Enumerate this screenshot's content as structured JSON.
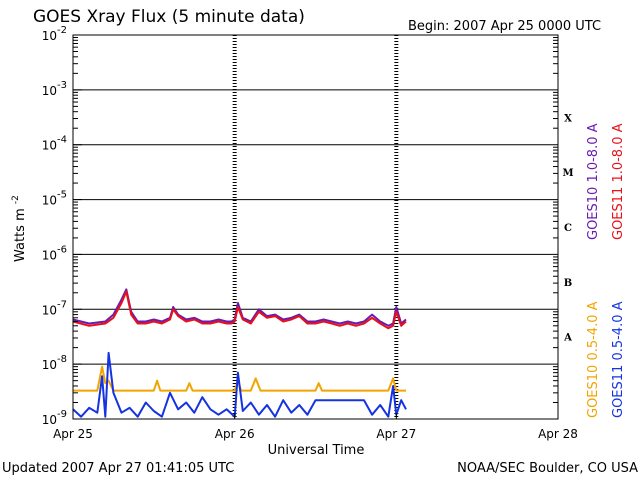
{
  "chart_data": {
    "type": "line",
    "title": "GOES Xray Flux (5 minute data)",
    "begin_label": "Begin:  2007 Apr 25 0000 UTC",
    "ylabel_main": "Watts m",
    "ylabel_sup": "-2",
    "xlabel": "Universal Time",
    "footer_left": "Updated 2007 Apr 27 01:41:05 UTC",
    "footer_right": "NOAA/SEC Boulder, CO USA",
    "y_scale": "log",
    "ylim": [
      1e-09,
      0.01
    ],
    "y_ticks": [
      {
        "value": 0.01,
        "base": "10",
        "exp": "-2"
      },
      {
        "value": 0.001,
        "base": "10",
        "exp": "-3"
      },
      {
        "value": 0.0001,
        "base": "10",
        "exp": "-4"
      },
      {
        "value": 1e-05,
        "base": "10",
        "exp": "-5"
      },
      {
        "value": 1e-06,
        "base": "10",
        "exp": "-6"
      },
      {
        "value": 1e-07,
        "base": "10",
        "exp": "-7"
      },
      {
        "value": 1e-08,
        "base": "10",
        "exp": "-8"
      },
      {
        "value": 1e-09,
        "base": "10",
        "exp": "-9"
      }
    ],
    "x_unit": "days since 2007 Apr 25 0000 UTC",
    "xlim": [
      0,
      3
    ],
    "x_ticks": [
      {
        "value": 0,
        "label": "Apr 25"
      },
      {
        "value": 1,
        "label": "Apr 26"
      },
      {
        "value": 2,
        "label": "Apr 27"
      },
      {
        "value": 3,
        "label": "Apr 28"
      }
    ],
    "flare_classes": [
      {
        "label": "X",
        "bottom": 0.0001
      },
      {
        "label": "M",
        "bottom": 1e-05
      },
      {
        "label": "C",
        "bottom": 1e-06
      },
      {
        "label": "B",
        "bottom": 1e-07
      },
      {
        "label": "A",
        "bottom": 1e-08
      }
    ],
    "grid_horizontal": true,
    "legend_placement": "right (vertical)",
    "series": [
      {
        "name": "GOES10 1.0-8.0 A",
        "color": "#6a1bb0",
        "x": [
          0,
          0.1,
          0.2,
          0.25,
          0.3,
          0.33,
          0.36,
          0.4,
          0.45,
          0.5,
          0.55,
          0.6,
          0.62,
          0.65,
          0.7,
          0.75,
          0.8,
          0.85,
          0.9,
          0.95,
          0.98,
          1.0,
          1.02,
          1.05,
          1.1,
          1.15,
          1.2,
          1.25,
          1.3,
          1.35,
          1.4,
          1.45,
          1.5,
          1.55,
          1.6,
          1.65,
          1.7,
          1.75,
          1.8,
          1.85,
          1.9,
          1.95,
          1.98,
          2.0,
          2.03,
          2.06
        ],
        "values": [
          6.5e-08,
          5.5e-08,
          6e-08,
          8e-08,
          1.5e-07,
          2.3e-07,
          9e-08,
          6e-08,
          6e-08,
          6.5e-08,
          6e-08,
          7e-08,
          1.1e-07,
          8e-08,
          6.5e-08,
          7e-08,
          6e-08,
          6e-08,
          6.5e-08,
          6e-08,
          6e-08,
          6.5e-08,
          1.3e-07,
          7e-08,
          6e-08,
          1e-07,
          7.5e-08,
          8e-08,
          6.5e-08,
          7e-08,
          8e-08,
          6e-08,
          6e-08,
          6.5e-08,
          6e-08,
          5.5e-08,
          6e-08,
          5.5e-08,
          6e-08,
          8e-08,
          6e-08,
          5e-08,
          5.5e-08,
          1.1e-07,
          5.5e-08,
          6.5e-08
        ]
      },
      {
        "name": "GOES11 1.0-8.0 A",
        "color": "#e8101a",
        "x": [
          0,
          0.1,
          0.2,
          0.25,
          0.3,
          0.33,
          0.36,
          0.4,
          0.45,
          0.5,
          0.55,
          0.6,
          0.62,
          0.65,
          0.7,
          0.75,
          0.8,
          0.85,
          0.9,
          0.95,
          0.98,
          1.0,
          1.02,
          1.05,
          1.1,
          1.15,
          1.2,
          1.25,
          1.3,
          1.35,
          1.4,
          1.45,
          1.5,
          1.55,
          1.6,
          1.65,
          1.7,
          1.75,
          1.8,
          1.85,
          1.9,
          1.95,
          1.98,
          2.0,
          2.03,
          2.06
        ],
        "values": [
          6e-08,
          5e-08,
          5.5e-08,
          7e-08,
          1.3e-07,
          2.1e-07,
          8e-08,
          5.5e-08,
          5.5e-08,
          6e-08,
          5.5e-08,
          6.5e-08,
          1e-07,
          7.5e-08,
          6e-08,
          6.5e-08,
          5.5e-08,
          5.5e-08,
          6e-08,
          5.5e-08,
          5.5e-08,
          6e-08,
          1.1e-07,
          6.5e-08,
          5.5e-08,
          9e-08,
          7e-08,
          7.5e-08,
          6e-08,
          6.5e-08,
          7.5e-08,
          5.5e-08,
          5.5e-08,
          6e-08,
          5.5e-08,
          5e-08,
          5.5e-08,
          5e-08,
          5.5e-08,
          7e-08,
          5.5e-08,
          4.5e-08,
          5e-08,
          9e-08,
          5e-08,
          6e-08
        ]
      },
      {
        "name": "GOES10 0.5-4.0 A",
        "color": "#f2a400",
        "x": [
          0,
          0.15,
          0.18,
          0.2,
          0.22,
          0.25,
          0.5,
          0.52,
          0.54,
          0.7,
          0.72,
          0.74,
          1.0,
          1.02,
          1.04,
          1.1,
          1.13,
          1.16,
          1.5,
          1.52,
          1.54,
          1.95,
          1.98,
          2.0,
          2.06
        ],
        "values": [
          3.3e-09,
          3.3e-09,
          9e-09,
          4.5e-09,
          5e-09,
          3.3e-09,
          3.3e-09,
          5e-09,
          3.3e-09,
          3.3e-09,
          4.5e-09,
          3.3e-09,
          3.3e-09,
          5e-09,
          3.3e-09,
          3.3e-09,
          5.5e-09,
          3.3e-09,
          3.3e-09,
          4.5e-09,
          3.3e-09,
          3.3e-09,
          5.5e-09,
          3.3e-09,
          3.3e-09
        ]
      },
      {
        "name": "GOES11 0.5-4.0 A",
        "color": "#1533e0",
        "x": [
          0,
          0.05,
          0.1,
          0.15,
          0.18,
          0.2,
          0.22,
          0.25,
          0.3,
          0.35,
          0.4,
          0.45,
          0.5,
          0.55,
          0.6,
          0.65,
          0.7,
          0.75,
          0.8,
          0.85,
          0.9,
          0.95,
          1.0,
          1.02,
          1.05,
          1.1,
          1.15,
          1.2,
          1.25,
          1.3,
          1.35,
          1.4,
          1.45,
          1.5,
          1.6,
          1.7,
          1.8,
          1.85,
          1.9,
          1.95,
          1.98,
          2.0,
          2.03,
          2.06
        ],
        "values": [
          1.5e-09,
          1.1e-09,
          1.6e-09,
          1.3e-09,
          6e-09,
          1.1e-09,
          1.6e-08,
          3e-09,
          1.3e-09,
          1.6e-09,
          1.1e-09,
          2e-09,
          1.4e-09,
          1.1e-09,
          3e-09,
          1.5e-09,
          2e-09,
          1.3e-09,
          2.5e-09,
          1.5e-09,
          1.2e-09,
          1.5e-09,
          1.1e-09,
          7e-09,
          1.4e-09,
          2e-09,
          1.2e-09,
          1.8e-09,
          1.1e-09,
          2.2e-09,
          1.3e-09,
          1.8e-09,
          1.2e-09,
          2.2e-09,
          2.2e-09,
          2.2e-09,
          2.2e-09,
          1.2e-09,
          1.8e-09,
          1.1e-09,
          4e-09,
          1.2e-09,
          2.2e-09,
          1.5e-09
        ]
      }
    ]
  }
}
